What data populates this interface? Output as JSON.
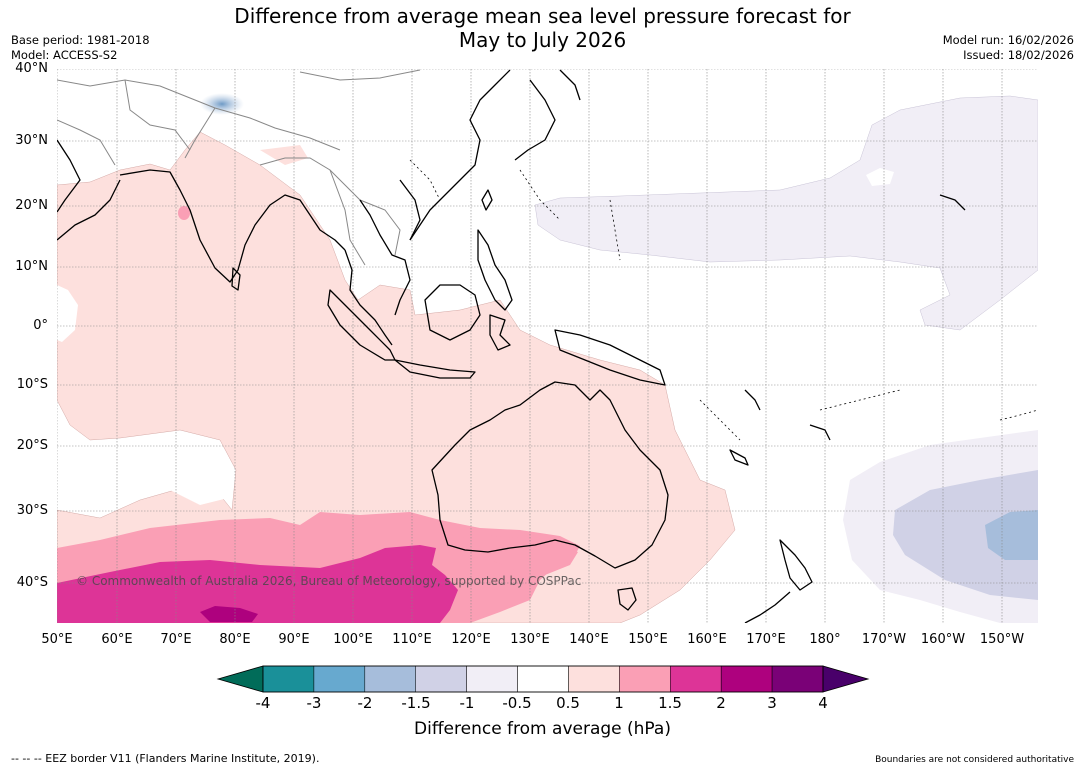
{
  "title": {
    "line1": "Difference from average mean sea level pressure forecast for",
    "line2": "May to July 2026"
  },
  "meta": {
    "base_period": "Base period: 1981-2018",
    "model": "Model: ACCESS-S2",
    "model_run": "Model run: 16/02/2026",
    "issued": "Issued: 18/02/2026"
  },
  "map": {
    "lat_labels": [
      "40°N",
      "30°N",
      "20°N",
      "10°N",
      "0°",
      "10°S",
      "20°S",
      "30°S",
      "40°S"
    ],
    "lon_labels": [
      "50°E",
      "60°E",
      "70°E",
      "80°E",
      "90°E",
      "100°E",
      "110°E",
      "120°E",
      "130°E",
      "140°E",
      "150°E",
      "160°E",
      "170°E",
      "180°",
      "170°W",
      "160°W",
      "150°W"
    ],
    "copyright": "© Commonwealth of Australia 2026, Bureau of Meteorology, supported by COSPPac"
  },
  "colorbar": {
    "ticks": [
      "-4",
      "-3",
      "-2",
      "-1.5",
      "-1",
      "-0.5",
      "0.5",
      "1",
      "1.5",
      "2",
      "3",
      "4"
    ],
    "colors": [
      "#1a9099",
      "#67a9cf",
      "#a6bddb",
      "#d0d1e6",
      "#f1eef6",
      "#ffffff",
      "#fde0dd",
      "#fa9fb5",
      "#dd3497",
      "#ae017e",
      "#7a0177"
    ],
    "low_extend_color": "#016c59",
    "high_extend_color": "#49006a",
    "title": "Difference from average (hPa)"
  },
  "footer": {
    "eez": "--  --  -- EEZ border V11 (Flanders Marine Institute, 2019).",
    "boundaries": "Boundaries are not considered authoritative"
  }
}
